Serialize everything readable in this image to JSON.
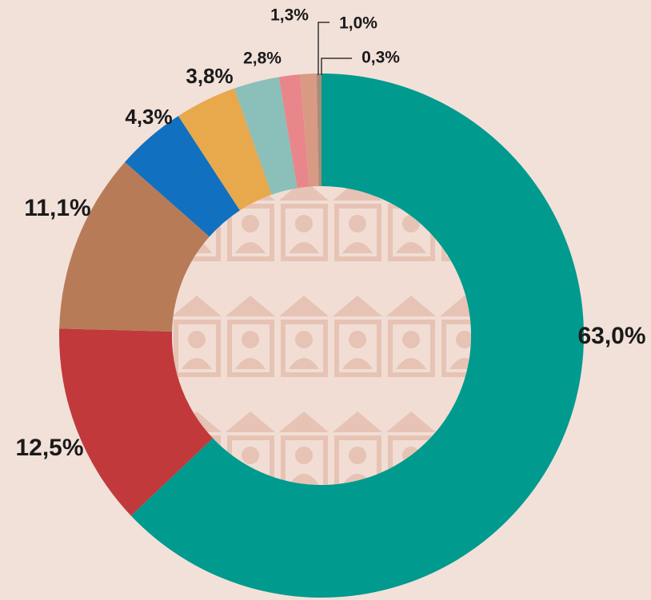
{
  "chart_data": {
    "type": "donut",
    "values": [
      63.0,
      12.5,
      11.1,
      4.3,
      3.8,
      2.8,
      1.3,
      1.0,
      0.3
    ],
    "value_labels": [
      "63,0%",
      "12,5%",
      "11,1%",
      "4,3%",
      "3,8%",
      "2,8%",
      "1,3%",
      "1,0%",
      "0,3%"
    ],
    "colors": [
      "#009a8e",
      "#c1393b",
      "#b87b58",
      "#1170bf",
      "#e8a84c",
      "#8bbfb9",
      "#e9868c",
      "#d99a84",
      "#a88c7a"
    ]
  }
}
